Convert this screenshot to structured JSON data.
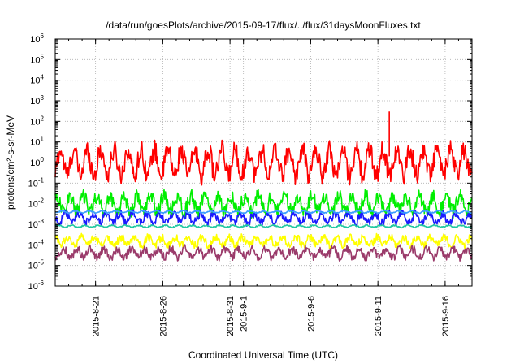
{
  "chart_data": {
    "type": "line",
    "title": "/data/run/goesPlots/archive/2015-09-17/flux/../flux/31daysMoonFluxes.txt",
    "xlabel": "Coordinated Universal Time (UTC)",
    "ylabel": "protons/cm²-s-sr-MeV",
    "y_scale": "log",
    "ylim": [
      1e-06,
      1000000.0
    ],
    "xlim": [
      "2015-08-18",
      "2015-09-18"
    ],
    "y_ticks": [
      {
        "base": "10",
        "exp": "6"
      },
      {
        "base": "10",
        "exp": "5"
      },
      {
        "base": "10",
        "exp": "4"
      },
      {
        "base": "10",
        "exp": "3"
      },
      {
        "base": "10",
        "exp": "2"
      },
      {
        "base": "10",
        "exp": "1"
      },
      {
        "base": "10",
        "exp": "0"
      },
      {
        "base": "10",
        "exp": "-1"
      },
      {
        "base": "10",
        "exp": "-2"
      },
      {
        "base": "10",
        "exp": "-3"
      },
      {
        "base": "10",
        "exp": "-4"
      },
      {
        "base": "10",
        "exp": "-5"
      },
      {
        "base": "10",
        "exp": "-6"
      }
    ],
    "x_ticks": [
      {
        "label": "2015-8-21",
        "date": "2015-08-21"
      },
      {
        "label": "2015-8-26",
        "date": "2015-08-26"
      },
      {
        "label": "2015-8-31",
        "date": "2015-08-31"
      },
      {
        "label": "2015-9-1",
        "date": "2015-09-01"
      },
      {
        "label": "2015-9-6",
        "date": "2015-09-06"
      },
      {
        "label": "2015-9-11",
        "date": "2015-09-11"
      },
      {
        "label": "2015-9-16",
        "date": "2015-09-16"
      }
    ],
    "grid": true,
    "series": [
      {
        "color": "#ff0000",
        "level": 1.0,
        "spread": 1.0,
        "noise": 0.5
      },
      {
        "color": "#00ee00",
        "level": 0.01,
        "spread": 0.6,
        "noise": 0.35
      },
      {
        "color": "#1a1aff",
        "level": 0.002,
        "spread": 0.35,
        "noise": 0.2
      },
      {
        "color": "#3a9cff",
        "level": 0.004,
        "spread": 0.08,
        "noise": 0.03
      },
      {
        "color": "#20c8a0",
        "level": 0.0008,
        "spread": 0.08,
        "noise": 0.03
      },
      {
        "color": "#ffff00",
        "level": 0.00015,
        "spread": 0.3,
        "noise": 0.2
      },
      {
        "color": "#9a3a6a",
        "level": 4e-05,
        "spread": 0.35,
        "noise": 0.2
      }
    ],
    "extra_points": [
      {
        "date": "2015-09-11",
        "value": 300
      }
    ]
  }
}
